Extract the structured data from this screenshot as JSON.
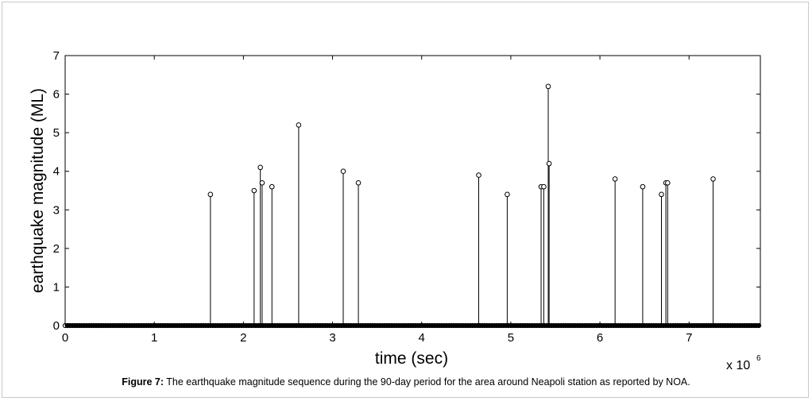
{
  "caption": {
    "label": "Figure 7:",
    "text": " The earthquake magnitude sequence during the 90-day period for the area around Neapoli station as reported by NOA."
  },
  "chart_data": {
    "type": "stem",
    "title": "",
    "xlabel": "time (sec)",
    "ylabel": "earthquake magnitude (ML)",
    "x_multiplier_label": "x 10",
    "x_multiplier_exponent": "6",
    "xlim": [
      0,
      7.8
    ],
    "ylim": [
      0,
      7
    ],
    "x_ticks": [
      0,
      1,
      2,
      3,
      4,
      5,
      6,
      7
    ],
    "y_ticks": [
      0,
      1,
      2,
      3,
      4,
      5,
      6,
      7
    ],
    "x_unit_scale": 1000000,
    "baseline_value": 0,
    "points": [
      {
        "x": 1.63,
        "y": 3.4
      },
      {
        "x": 2.12,
        "y": 3.5
      },
      {
        "x": 2.19,
        "y": 4.1
      },
      {
        "x": 2.21,
        "y": 3.7
      },
      {
        "x": 2.32,
        "y": 3.6
      },
      {
        "x": 2.62,
        "y": 5.2
      },
      {
        "x": 3.12,
        "y": 4.0
      },
      {
        "x": 3.29,
        "y": 3.7
      },
      {
        "x": 4.64,
        "y": 3.9
      },
      {
        "x": 4.96,
        "y": 3.4
      },
      {
        "x": 5.34,
        "y": 3.6
      },
      {
        "x": 5.37,
        "y": 3.6
      },
      {
        "x": 5.42,
        "y": 6.2
      },
      {
        "x": 5.43,
        "y": 4.2
      },
      {
        "x": 6.17,
        "y": 3.8
      },
      {
        "x": 6.48,
        "y": 3.6
      },
      {
        "x": 6.69,
        "y": 3.4
      },
      {
        "x": 6.74,
        "y": 3.7
      },
      {
        "x": 6.76,
        "y": 3.7
      },
      {
        "x": 7.27,
        "y": 3.8
      }
    ],
    "grid": false,
    "marker": "circle",
    "color": "#000000"
  }
}
